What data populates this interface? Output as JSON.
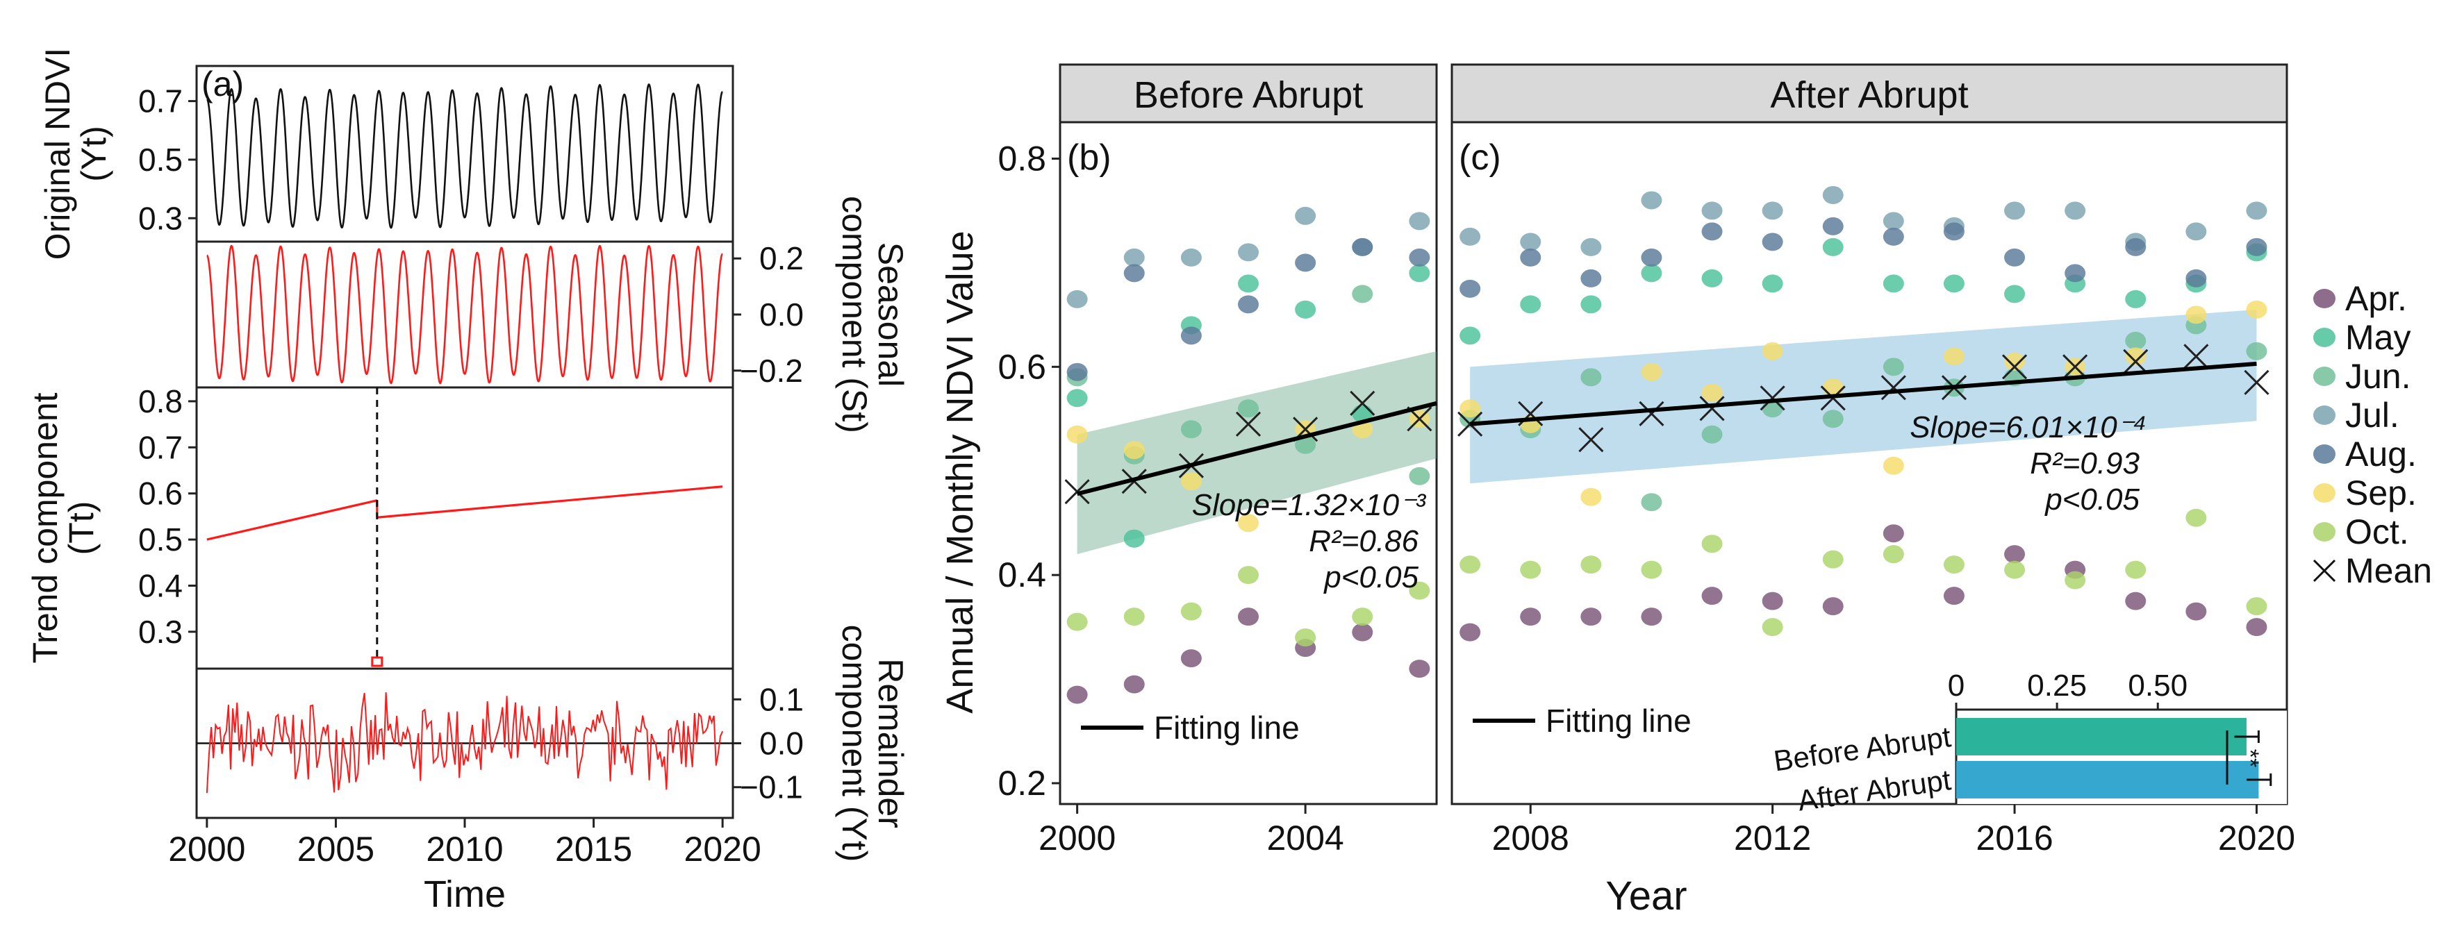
{
  "colors": {
    "apr": "#7a5478",
    "may": "#4cc29a",
    "jun": "#72bf9a",
    "jul": "#7ba3b0",
    "aug": "#5b7a9a",
    "sep": "#f5dd6a",
    "oct": "#aad46a",
    "mean": "#222222",
    "stl_black": "#111111",
    "stl_red": "#ff1a1a",
    "ribbon_before": "#5fa586",
    "ribbon_after": "#6aaed6",
    "bar_before": "#2bb39c",
    "bar_after": "#36a8d0",
    "strip": "#d9d9d9"
  },
  "chart_data": [
    {
      "id": "a",
      "type": "line",
      "panel_label": "(a)",
      "xlabel": "Time",
      "x_ticks": [
        "2000",
        "2005",
        "2010",
        "2015",
        "2020"
      ],
      "x_range": [
        1999.6,
        2020.4
      ],
      "breakpoint_year": 2006.6,
      "subplots": [
        {
          "name": "original",
          "ylabel_lines": [
            "Original NDVI",
            "(Yt)"
          ],
          "ylabel_side": "left",
          "y_ticks": [
            "0.7",
            "0.5",
            "0.3"
          ],
          "y_tick_values": [
            0.7,
            0.5,
            0.3
          ],
          "ylim": [
            0.22,
            0.82
          ],
          "series": {
            "kind": "seasonal",
            "base_start": 0.5,
            "base_end": 0.52,
            "amplitude": 0.24,
            "cycles": 21
          }
        },
        {
          "name": "seasonal",
          "ylabel_lines": [
            "Seasonal",
            "component (St)"
          ],
          "ylabel_side": "right",
          "y_ticks": [
            "0.2",
            "0.0",
            "−0.2"
          ],
          "y_tick_values": [
            0.2,
            0.0,
            -0.2
          ],
          "ylim": [
            -0.26,
            0.26
          ],
          "series": {
            "kind": "seasonal",
            "amplitude": 0.245,
            "cycles": 21
          }
        },
        {
          "name": "trend",
          "ylabel_lines": [
            "Trend component",
            "(Tt)"
          ],
          "ylabel_side": "left",
          "y_ticks": [
            "0.8",
            "0.7",
            "0.6",
            "0.5",
            "0.4",
            "0.3"
          ],
          "y_tick_values": [
            0.8,
            0.7,
            0.6,
            0.5,
            0.4,
            0.3
          ],
          "ylim": [
            0.22,
            0.83
          ],
          "series": {
            "kind": "piecewise",
            "segments": [
              {
                "x": [
                  2000,
                  2006.6
                ],
                "y": [
                  0.5,
                  0.585
                ]
              },
              {
                "x": [
                  2006.6,
                  2020
                ],
                "y": [
                  0.548,
                  0.615
                ]
              }
            ]
          }
        },
        {
          "name": "remainder",
          "ylabel_lines": [
            "Remainder",
            "component (Yt)"
          ],
          "ylabel_side": "right",
          "y_ticks": [
            "0.1",
            "0.0",
            "−0.1"
          ],
          "y_tick_values": [
            0.1,
            0.0,
            -0.1
          ],
          "ylim": [
            -0.17,
            0.17
          ],
          "series": {
            "kind": "noise",
            "amplitude": 0.12,
            "count": 240
          }
        }
      ]
    },
    {
      "id": "b",
      "type": "scatter",
      "strip_title": "Before Abrupt",
      "panel_label": "(b)",
      "ylabel": "Annual / Monthly NDVI Value",
      "y_ticks": [
        "0.8",
        "0.6",
        "0.4",
        "0.2"
      ],
      "y_tick_values": [
        0.8,
        0.6,
        0.4,
        0.2
      ],
      "ylim": [
        0.18,
        0.835
      ],
      "xlim": [
        1999.7,
        2006.3
      ],
      "x_ticks": [
        "2000",
        "2004"
      ],
      "x_tick_values": [
        2000,
        2004
      ],
      "years": [
        2000,
        2001,
        2002,
        2003,
        2004,
        2005,
        2006
      ],
      "series": [
        {
          "name": "Apr.",
          "key": "apr",
          "values": [
            0.285,
            0.295,
            0.32,
            0.36,
            0.33,
            0.345,
            0.31
          ]
        },
        {
          "name": "May",
          "key": "may",
          "values": [
            0.57,
            0.435,
            0.64,
            0.68,
            0.655,
            0.555,
            0.69
          ]
        },
        {
          "name": "Jun.",
          "key": "jun",
          "values": [
            0.59,
            0.515,
            0.54,
            0.56,
            0.525,
            0.67,
            0.495
          ]
        },
        {
          "name": "Jul.",
          "key": "jul",
          "values": [
            0.665,
            0.705,
            0.705,
            0.71,
            0.745,
            0.715,
            0.74
          ]
        },
        {
          "name": "Aug.",
          "key": "aug",
          "values": [
            0.595,
            0.69,
            0.63,
            0.66,
            0.7,
            0.715,
            0.705
          ]
        },
        {
          "name": "Sep.",
          "key": "sep",
          "values": [
            0.535,
            0.52,
            0.49,
            0.45,
            0.54,
            0.54,
            0.55
          ]
        },
        {
          "name": "Oct.",
          "key": "oct",
          "values": [
            0.355,
            0.36,
            0.365,
            0.4,
            0.34,
            0.36,
            0.385
          ]
        },
        {
          "name": "Mean",
          "key": "mean",
          "values": [
            0.48,
            0.49,
            0.505,
            0.545,
            0.54,
            0.565,
            0.55
          ]
        }
      ],
      "fit": {
        "x": [
          2000,
          2006.3
        ],
        "y": [
          0.478,
          0.565
        ],
        "ci_lower": [
          0.42,
          0.512
        ],
        "ci_upper": [
          0.535,
          0.615
        ]
      },
      "annotations": {
        "slope": "Slope=1.32×10⁻³",
        "r2": "R²=0.86",
        "p": "p<0.05"
      },
      "fit_legend": "Fitting line"
    },
    {
      "id": "c",
      "type": "scatter",
      "strip_title": "After Abrupt",
      "panel_label": "(c)",
      "xlabel": "Year",
      "ylim": [
        0.18,
        0.835
      ],
      "xlim": [
        2006.7,
        2020.5
      ],
      "x_ticks": [
        "2008",
        "2012",
        "2016",
        "2020"
      ],
      "x_tick_values": [
        2008,
        2012,
        2016,
        2020
      ],
      "years": [
        2007,
        2008,
        2009,
        2010,
        2011,
        2012,
        2013,
        2014,
        2015,
        2016,
        2017,
        2018,
        2019,
        2020
      ],
      "series": [
        {
          "name": "Apr.",
          "key": "apr",
          "values": [
            0.345,
            0.36,
            0.36,
            0.36,
            0.38,
            0.375,
            0.37,
            0.44,
            0.38,
            0.42,
            0.405,
            0.375,
            0.365,
            0.35
          ]
        },
        {
          "name": "May",
          "key": "may",
          "values": [
            0.63,
            0.66,
            0.66,
            0.69,
            0.685,
            0.68,
            0.715,
            0.68,
            0.68,
            0.67,
            0.68,
            0.665,
            0.68,
            0.71
          ]
        },
        {
          "name": "Jun.",
          "key": "jun",
          "values": [
            0.55,
            0.54,
            0.59,
            0.47,
            0.535,
            0.56,
            0.55,
            0.6,
            0.58,
            0.59,
            0.59,
            0.625,
            0.64,
            0.615
          ]
        },
        {
          "name": "Jul.",
          "key": "jul",
          "values": [
            0.725,
            0.72,
            0.715,
            0.76,
            0.75,
            0.75,
            0.765,
            0.74,
            0.735,
            0.75,
            0.75,
            0.72,
            0.73,
            0.75
          ]
        },
        {
          "name": "Aug.",
          "key": "aug",
          "values": [
            0.675,
            0.705,
            0.685,
            0.705,
            0.73,
            0.72,
            0.735,
            0.725,
            0.73,
            0.705,
            0.69,
            0.715,
            0.685,
            0.715
          ]
        },
        {
          "name": "Sep.",
          "key": "sep",
          "values": [
            0.56,
            0.545,
            0.475,
            0.595,
            0.575,
            0.615,
            0.58,
            0.505,
            0.61,
            0.605,
            0.6,
            0.61,
            0.65,
            0.655
          ]
        },
        {
          "name": "Oct.",
          "key": "oct",
          "values": [
            0.41,
            0.405,
            0.41,
            0.405,
            0.43,
            0.35,
            0.415,
            0.42,
            0.41,
            0.405,
            0.395,
            0.405,
            0.455,
            0.37
          ]
        },
        {
          "name": "Mean",
          "key": "mean",
          "values": [
            0.545,
            0.555,
            0.53,
            0.555,
            0.56,
            0.57,
            0.57,
            0.58,
            0.58,
            0.6,
            0.6,
            0.605,
            0.61,
            0.585
          ]
        }
      ],
      "fit": {
        "x": [
          2007,
          2020
        ],
        "y": [
          0.545,
          0.603
        ],
        "ci_lower": [
          0.488,
          0.548
        ],
        "ci_upper": [
          0.6,
          0.655
        ]
      },
      "annotations": {
        "slope": "Slope=6.01×10⁻⁴",
        "r2": "R²=0.93",
        "p": "p<0.05"
      },
      "fit_legend": "Fitting line",
      "inset": {
        "type": "bar",
        "orientation": "horizontal",
        "x_ticks": [
          "0",
          "0.25",
          "0.50"
        ],
        "x_tick_values": [
          0,
          0.25,
          0.5
        ],
        "xlim": [
          0,
          0.82
        ],
        "categories": [
          "Before Abrupt",
          "After Abrupt"
        ],
        "values": [
          0.72,
          0.75
        ],
        "errors": [
          0.03,
          0.03
        ],
        "significance": "**"
      }
    }
  ],
  "legend": {
    "items": [
      {
        "label": "Apr.",
        "key": "apr",
        "marker": "dot"
      },
      {
        "label": "May",
        "key": "may",
        "marker": "dot"
      },
      {
        "label": "Jun.",
        "key": "jun",
        "marker": "dot"
      },
      {
        "label": "Jul.",
        "key": "jul",
        "marker": "dot"
      },
      {
        "label": "Aug.",
        "key": "aug",
        "marker": "dot"
      },
      {
        "label": "Sep.",
        "key": "sep",
        "marker": "dot"
      },
      {
        "label": "Oct.",
        "key": "oct",
        "marker": "dot"
      },
      {
        "label": "Mean",
        "key": "mean",
        "marker": "cross"
      }
    ]
  }
}
